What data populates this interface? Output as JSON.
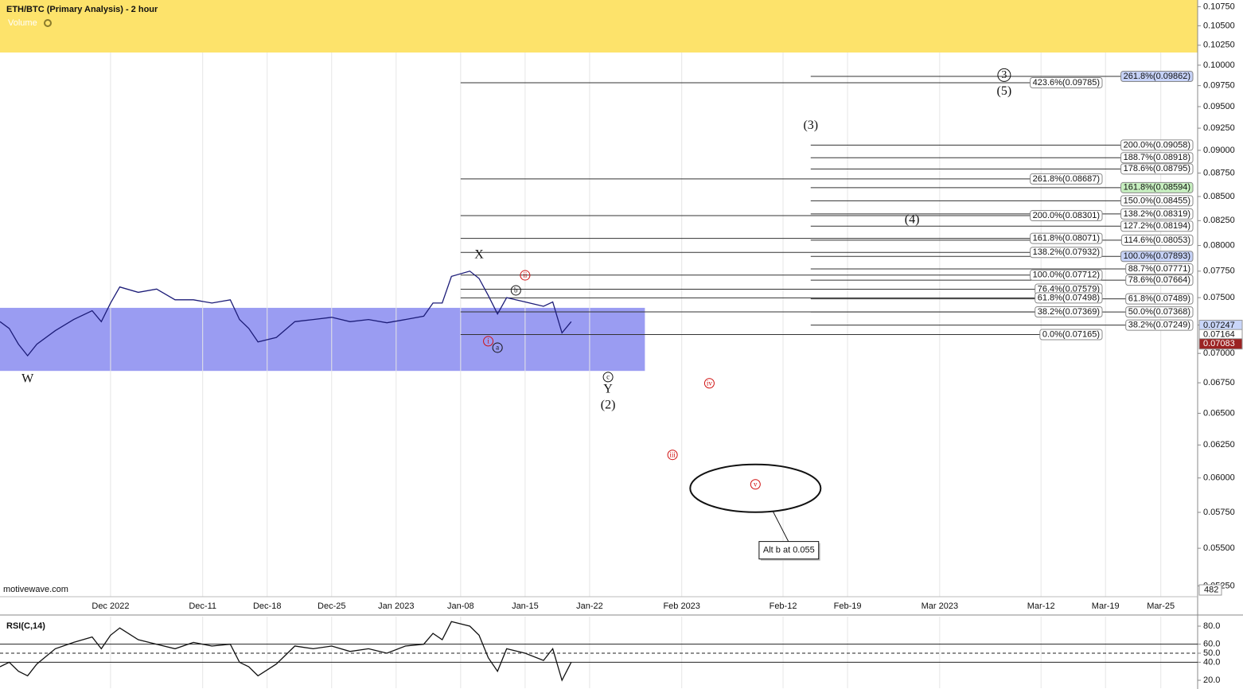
{
  "chart_data": [
    {
      "type": "line",
      "title": "ETH/BTC (Primary Analysis) - 2 hour",
      "volume_title": "Volume",
      "volume_axis_label": "482",
      "watermark": "motivewave.com",
      "log_scale": true,
      "grid": true,
      "color": "#1c1c78",
      "xlim": [
        "2022-11-19",
        "2023-03-29"
      ],
      "xticks": [
        {
          "value": "2022-12-01",
          "label": "Dec 2022"
        },
        {
          "value": "2022-12-11",
          "label": "Dec-11"
        },
        {
          "value": "2022-12-18",
          "label": "Dec-18"
        },
        {
          "value": "2022-12-25",
          "label": "Dec-25"
        },
        {
          "value": "2023-01-01",
          "label": "Jan 2023"
        },
        {
          "value": "2023-01-08",
          "label": "Jan-08"
        },
        {
          "value": "2023-01-15",
          "label": "Jan-15"
        },
        {
          "value": "2023-01-22",
          "label": "Jan-22"
        },
        {
          "value": "2023-02-01",
          "label": "Feb 2023"
        },
        {
          "value": "2023-02-12",
          "label": "Feb-12"
        },
        {
          "value": "2023-02-19",
          "label": "Feb-19"
        },
        {
          "value": "2023-03-01",
          "label": "Mar 2023"
        },
        {
          "value": "2023-03-12",
          "label": "Mar-12"
        },
        {
          "value": "2023-03-19",
          "label": "Mar-19"
        },
        {
          "value": "2023-03-25",
          "label": "Mar-25"
        }
      ],
      "ylim": [
        0.0518,
        0.1084
      ],
      "yticks": [
        {
          "value": 0.0525,
          "label": "0.05250"
        },
        {
          "value": 0.055,
          "label": "0.05500"
        },
        {
          "value": 0.0575,
          "label": "0.05750"
        },
        {
          "value": 0.06,
          "label": "0.06000"
        },
        {
          "value": 0.0625,
          "label": "0.06250"
        },
        {
          "value": 0.065,
          "label": "0.06500"
        },
        {
          "value": 0.0675,
          "label": "0.06750"
        },
        {
          "value": 0.07,
          "label": "0.07000"
        },
        {
          "value": 0.0725,
          "label": "0.07250"
        },
        {
          "value": 0.075,
          "label": "0.07500"
        },
        {
          "value": 0.0775,
          "label": "0.07750"
        },
        {
          "value": 0.08,
          "label": "0.08000"
        },
        {
          "value": 0.0825,
          "label": "0.08250"
        },
        {
          "value": 0.085,
          "label": "0.08500"
        },
        {
          "value": 0.0875,
          "label": "0.08750"
        },
        {
          "value": 0.09,
          "label": "0.09000"
        },
        {
          "value": 0.0925,
          "label": "0.09250"
        },
        {
          "value": 0.095,
          "label": "0.09500"
        },
        {
          "value": 0.0975,
          "label": "0.09750"
        },
        {
          "value": 0.1,
          "label": "0.10000"
        },
        {
          "value": 0.1025,
          "label": "0.10250"
        },
        {
          "value": 0.105,
          "label": "0.10500"
        },
        {
          "value": 0.1075,
          "label": "0.10750"
        }
      ],
      "x": [
        "2022-11-19",
        "2022-11-20",
        "2022-11-21",
        "2022-11-22",
        "2022-11-23",
        "2022-11-25",
        "2022-11-27",
        "2022-11-29",
        "2022-11-30",
        "2022-12-01",
        "2022-12-02",
        "2022-12-04",
        "2022-12-06",
        "2022-12-08",
        "2022-12-10",
        "2022-12-12",
        "2022-12-14",
        "2022-12-15",
        "2022-12-16",
        "2022-12-17",
        "2022-12-19",
        "2022-12-21",
        "2022-12-23",
        "2022-12-25",
        "2022-12-27",
        "2022-12-29",
        "2022-12-31",
        "2023-01-02",
        "2023-01-04",
        "2023-01-05",
        "2023-01-06",
        "2023-01-07",
        "2023-01-09",
        "2023-01-10",
        "2023-01-11",
        "2023-01-12",
        "2023-01-13",
        "2023-01-15",
        "2023-01-17",
        "2023-01-18",
        "2023-01-19",
        "2023-01-20"
      ],
      "values": [
        0.0728,
        0.0722,
        0.0708,
        0.0698,
        0.0708,
        0.072,
        0.073,
        0.0738,
        0.0728,
        0.0745,
        0.076,
        0.0755,
        0.0758,
        0.0748,
        0.0748,
        0.0745,
        0.0748,
        0.073,
        0.0722,
        0.071,
        0.0714,
        0.0728,
        0.073,
        0.0732,
        0.0728,
        0.073,
        0.0727,
        0.073,
        0.0733,
        0.0745,
        0.0745,
        0.077,
        0.0775,
        0.0768,
        0.0752,
        0.0735,
        0.075,
        0.0746,
        0.0742,
        0.0746,
        0.0718,
        0.0728
      ],
      "zone": {
        "from": "2022-11-19",
        "to": "2023-01-28",
        "low": 0.0685,
        "high": 0.07406,
        "color": "#9a9cf2"
      },
      "fib_sets": [
        {
          "start": "2023-01-08",
          "levels": [
            {
              "label": "423.6%(0.09785)",
              "value": 0.09785
            },
            {
              "label": "261.8%(0.08687)",
              "value": 0.08687
            },
            {
              "label": "200.0%(0.08301)",
              "value": 0.08301
            },
            {
              "label": "161.8%(0.08071)",
              "value": 0.08071
            },
            {
              "label": "138.2%(0.07932)",
              "value": 0.07932
            },
            {
              "label": "100.0%(0.07712)",
              "value": 0.07712
            },
            {
              "label": "76.4%(0.07579)",
              "value": 0.07579
            },
            {
              "label": "61.8%(0.07498)",
              "value": 0.07498
            },
            {
              "label": "38.2%(0.07369)",
              "value": 0.07369
            },
            {
              "label": "0.0%(0.07165)",
              "value": 0.07165
            }
          ]
        },
        {
          "start": "2023-02-15",
          "levels": [
            {
              "label": "261.8%(0.09862)",
              "value": 0.09862,
              "highlight": "#c6d2f7"
            },
            {
              "label": "200.0%(0.09058)",
              "value": 0.09058
            },
            {
              "label": "188.7%(0.08918)",
              "value": 0.08918
            },
            {
              "label": "178.6%(0.08795)",
              "value": 0.08795
            },
            {
              "label": "161.8%(0.08594)",
              "value": 0.08594,
              "highlight": "#c7efc0"
            },
            {
              "label": "150.0%(0.08455)",
              "value": 0.08455
            },
            {
              "label": "138.2%(0.08319)",
              "value": 0.08319
            },
            {
              "label": "127.2%(0.08194)",
              "value": 0.08194
            },
            {
              "label": "114.6%(0.08053)",
              "value": 0.08053
            },
            {
              "label": "100.0%(0.07893)",
              "value": 0.07893,
              "highlight": "#c6d2f7"
            },
            {
              "label": "88.7%(0.07771)",
              "value": 0.07771
            },
            {
              "label": "78.6%(0.07664)",
              "value": 0.07664
            },
            {
              "label": "61.8%(0.07489)",
              "value": 0.07489
            },
            {
              "label": "50.0%(0.07368)",
              "value": 0.07368
            },
            {
              "label": "38.2%(0.07249)",
              "value": 0.07249
            }
          ]
        }
      ],
      "price_markers": [
        {
          "value": 0.07247,
          "bg": "#c9d6fa",
          "fg": "#111"
        },
        {
          "value": 0.07164,
          "bg": "#ffffff",
          "fg": "#111"
        },
        {
          "value": 0.07083,
          "bg": "#9b2222",
          "fg": "#ffffff"
        }
      ],
      "annotations": [
        {
          "text": "W",
          "date": "2022-11-22",
          "price": 0.06779,
          "style": "plain"
        },
        {
          "text": "X",
          "date": "2023-01-10",
          "price": 0.07902,
          "style": "plain"
        },
        {
          "text": "ii",
          "date": "2023-01-15",
          "price": 0.0771,
          "style": "circle-red"
        },
        {
          "text": "b",
          "date": "2023-01-14",
          "price": 0.07568,
          "style": "circle"
        },
        {
          "text": "i",
          "date": "2023-01-11",
          "price": 0.07106,
          "style": "circle-red"
        },
        {
          "text": "a",
          "date": "2023-01-12",
          "price": 0.0705,
          "style": "circle"
        },
        {
          "text": "c",
          "date": "2023-01-24",
          "price": 0.06798,
          "style": "circle"
        },
        {
          "text": "Y",
          "date": "2023-01-24",
          "price": 0.06692,
          "style": "plain"
        },
        {
          "text": "(2)",
          "date": "2023-01-24",
          "price": 0.06562,
          "style": "plain"
        },
        {
          "text": "iv",
          "date": "2023-02-04",
          "price": 0.06746,
          "style": "circle-red"
        },
        {
          "text": "iii",
          "date": "2023-01-31",
          "price": 0.06174,
          "style": "circle-red"
        },
        {
          "text": "v",
          "date": "2023-02-09",
          "price": 0.05953,
          "style": "circle-red"
        },
        {
          "text": "(3)",
          "date": "2023-02-15",
          "price": 0.09276,
          "style": "plain"
        },
        {
          "text": "(4)",
          "date": "2023-02-26",
          "price": 0.08252,
          "style": "plain"
        },
        {
          "text": "3",
          "date": "2023-03-08",
          "price": 0.09878,
          "style": "circle-big"
        },
        {
          "text": "(5)",
          "date": "2023-03-08",
          "price": 0.09676,
          "style": "plain"
        }
      ],
      "target": {
        "date": "2023-02-09",
        "price": 0.05924,
        "callout": "Alt b at 0.055"
      }
    },
    {
      "type": "line",
      "title": "RSI(C,14)",
      "color": "#111111",
      "xlim": [
        "2022-11-19",
        "2023-03-29"
      ],
      "ylim": [
        11.2,
        90.6
      ],
      "yticks": [
        {
          "value": 20,
          "label": "20.0"
        },
        {
          "value": 40,
          "label": "40.0"
        },
        {
          "value": 50,
          "label": "50.0"
        },
        {
          "value": 60,
          "label": "60.0"
        },
        {
          "value": 80,
          "label": "80.0"
        }
      ],
      "ref_lines": [
        60,
        40
      ],
      "dashed_line": 50,
      "x": [
        "2022-11-19",
        "2022-11-20",
        "2022-11-21",
        "2022-11-22",
        "2022-11-23",
        "2022-11-25",
        "2022-11-27",
        "2022-11-29",
        "2022-11-30",
        "2022-12-01",
        "2022-12-02",
        "2022-12-04",
        "2022-12-06",
        "2022-12-08",
        "2022-12-10",
        "2022-12-12",
        "2022-12-14",
        "2022-12-15",
        "2022-12-16",
        "2022-12-17",
        "2022-12-19",
        "2022-12-21",
        "2022-12-23",
        "2022-12-25",
        "2022-12-27",
        "2022-12-29",
        "2022-12-31",
        "2023-01-02",
        "2023-01-04",
        "2023-01-05",
        "2023-01-06",
        "2023-01-07",
        "2023-01-09",
        "2023-01-10",
        "2023-01-11",
        "2023-01-12",
        "2023-01-13",
        "2023-01-15",
        "2023-01-17",
        "2023-01-18",
        "2023-01-19",
        "2023-01-20"
      ],
      "values": [
        35,
        40,
        30,
        25,
        38,
        55,
        62,
        68,
        55,
        70,
        78,
        65,
        60,
        55,
        62,
        58,
        60,
        40,
        35,
        25,
        38,
        58,
        55,
        58,
        52,
        55,
        50,
        58,
        60,
        72,
        65,
        85,
        80,
        70,
        45,
        30,
        55,
        50,
        42,
        55,
        20,
        40
      ]
    }
  ]
}
